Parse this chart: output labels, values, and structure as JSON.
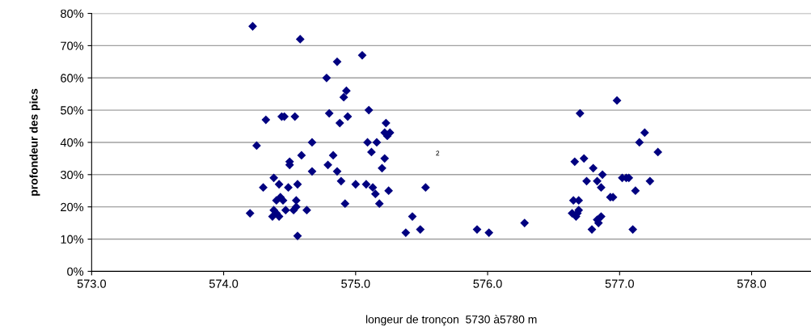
{
  "chart_data": {
    "type": "scatter",
    "xlabel": "longeur de tronçon  5730 à5780 m",
    "ylabel": "profondeur des pics",
    "x": [
      574.2,
      574.22,
      574.25,
      574.3,
      574.32,
      574.37,
      574.38,
      574.38,
      574.4,
      574.4,
      574.42,
      574.43,
      574.42,
      574.44,
      574.46,
      574.45,
      574.47,
      574.49,
      574.5,
      574.5,
      574.53,
      574.54,
      574.55,
      574.55,
      574.56,
      574.56,
      574.58,
      574.59,
      574.63,
      574.67,
      574.67,
      574.78,
      574.79,
      574.8,
      574.83,
      574.86,
      574.86,
      574.88,
      574.89,
      574.91,
      574.92,
      574.93,
      574.94,
      575.0,
      575.05,
      575.08,
      575.09,
      575.1,
      575.12,
      575.13,
      575.15,
      575.16,
      575.18,
      575.2,
      575.22,
      575.22,
      575.23,
      575.24,
      575.26,
      575.25,
      575.38,
      575.43,
      575.49,
      575.53,
      575.92,
      576.01,
      576.28,
      576.64,
      576.65,
      576.66,
      576.67,
      576.68,
      576.69,
      576.69,
      576.7,
      576.73,
      576.75,
      576.79,
      576.8,
      576.83,
      576.83,
      576.84,
      576.86,
      576.86,
      576.87,
      576.93,
      576.95,
      576.98,
      577.02,
      577.05,
      577.07,
      577.1,
      577.12,
      577.15,
      577.19,
      577.23,
      577.29
    ],
    "series": [
      {
        "color": "#000080",
        "values": [
          18,
          76,
          39,
          26,
          47,
          17,
          29,
          19,
          22,
          18,
          17,
          23,
          27,
          48,
          48,
          22,
          19,
          26,
          34,
          33,
          19,
          48,
          20,
          22,
          27,
          11,
          72,
          36,
          19,
          31,
          40,
          60,
          33,
          49,
          36,
          65,
          31,
          46,
          28,
          54,
          21,
          56,
          48,
          27,
          67,
          27,
          40,
          50,
          37,
          26,
          24,
          40,
          21,
          32,
          35,
          43,
          46,
          42,
          43,
          25,
          12,
          17,
          13,
          26,
          13,
          12,
          15,
          18,
          22,
          34,
          17,
          18,
          22,
          19,
          49,
          35,
          28,
          13,
          32,
          28,
          16,
          15,
          17,
          26,
          30,
          23,
          23,
          53,
          29,
          29,
          29,
          13,
          25,
          40,
          43,
          28,
          37
        ]
      }
    ],
    "xlim": [
      573.0,
      578.45
    ],
    "xticks": [
      {
        "value": 573,
        "label": "573.0"
      },
      {
        "value": 574,
        "label": "574.0"
      },
      {
        "value": 575,
        "label": "575.0"
      },
      {
        "value": 576,
        "label": "576.0"
      },
      {
        "value": 577,
        "label": "577.0"
      },
      {
        "value": 578,
        "label": "578.0"
      }
    ],
    "ylim": [
      0,
      80
    ],
    "yticks": [
      {
        "value": 0,
        "label": "0%"
      },
      {
        "value": 10,
        "label": "10%"
      },
      {
        "value": 20,
        "label": "20%"
      },
      {
        "value": 30,
        "label": "30%"
      },
      {
        "value": 40,
        "label": "40%"
      },
      {
        "value": 50,
        "label": "50%"
      },
      {
        "value": 60,
        "label": "60%"
      },
      {
        "value": 70,
        "label": "70%"
      },
      {
        "value": 80,
        "label": "80%"
      }
    ],
    "grid": "y",
    "marker": "diamond",
    "legend": false,
    "annotations": [
      "2"
    ]
  }
}
